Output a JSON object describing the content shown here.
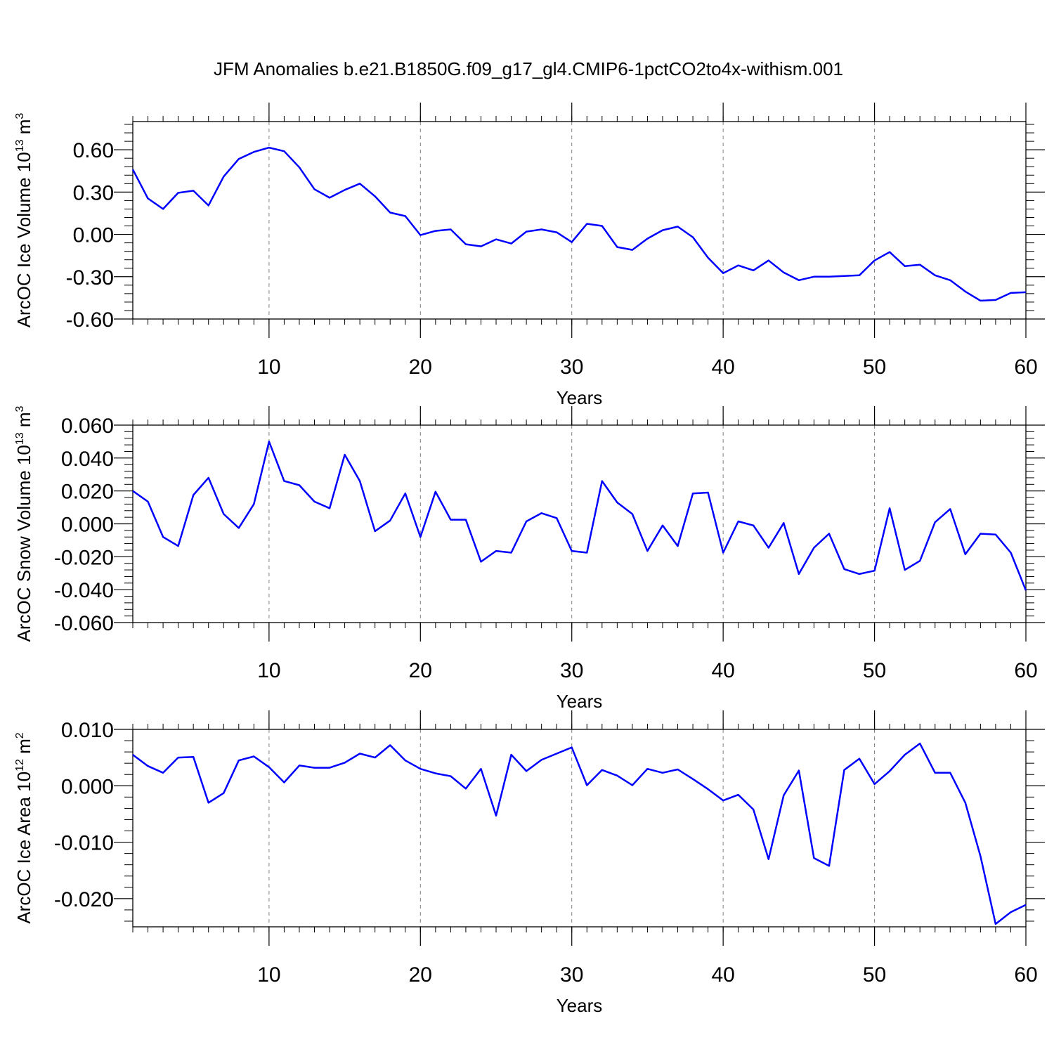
{
  "title": "JFM Anomalies b.e21.B1850G.f09_g17_gl4.CMIP6-1pctCO2to4x-withism.001",
  "colors": {
    "line": "#0000ff",
    "axis": "#000000",
    "grid": "#7f7f7f"
  },
  "chart_data": [
    {
      "type": "line",
      "xlabel": "Years",
      "ylabel": "ArcOC Ice Volume 10",
      "ylabel_exp": "13",
      "ylabel_unit": " m",
      "ylabel_unit_exp": "3",
      "xlim": [
        1,
        60
      ],
      "ylim": [
        -0.6,
        0.8
      ],
      "xticks": [
        10,
        20,
        30,
        40,
        50,
        60
      ],
      "yticks": [
        -0.6,
        -0.3,
        0.0,
        0.3,
        0.6
      ],
      "ytick_labels": [
        "-0.60",
        "-0.30",
        "0.00",
        "0.30",
        "0.60"
      ],
      "grid": "vertical dashed at major x ticks",
      "x": [
        1,
        2,
        3,
        4,
        5,
        6,
        7,
        8,
        9,
        10,
        11,
        12,
        13,
        14,
        15,
        16,
        17,
        18,
        19,
        20,
        21,
        22,
        23,
        24,
        25,
        26,
        27,
        28,
        29,
        30,
        31,
        32,
        33,
        34,
        35,
        36,
        37,
        38,
        39,
        40,
        41,
        42,
        43,
        44,
        45,
        46,
        47,
        48,
        49,
        50,
        51,
        52,
        53,
        54,
        55,
        56,
        57,
        58,
        59,
        60
      ],
      "values": [
        0.46,
        0.255,
        0.18,
        0.295,
        0.31,
        0.205,
        0.41,
        0.535,
        0.585,
        0.615,
        0.59,
        0.475,
        0.32,
        0.26,
        0.315,
        0.36,
        0.27,
        0.155,
        0.13,
        -0.005,
        0.025,
        0.035,
        -0.07,
        -0.085,
        -0.035,
        -0.065,
        0.02,
        0.035,
        0.015,
        -0.055,
        0.075,
        0.06,
        -0.09,
        -0.11,
        -0.03,
        0.03,
        0.055,
        -0.02,
        -0.165,
        -0.275,
        -0.22,
        -0.255,
        -0.185,
        -0.27,
        -0.325,
        -0.3,
        -0.3,
        -0.295,
        -0.29,
        -0.185,
        -0.125,
        -0.225,
        -0.215,
        -0.29,
        -0.325,
        -0.405,
        -0.47,
        -0.465,
        -0.415,
        -0.41
      ]
    },
    {
      "type": "line",
      "xlabel": "Years",
      "ylabel": "ArcOC Snow Volume 10",
      "ylabel_exp": "13",
      "ylabel_unit": " m",
      "ylabel_unit_exp": "3",
      "xlim": [
        1,
        60
      ],
      "ylim": [
        -0.06,
        0.06
      ],
      "xticks": [
        10,
        20,
        30,
        40,
        50,
        60
      ],
      "yticks": [
        -0.06,
        -0.04,
        -0.02,
        0.0,
        0.02,
        0.04,
        0.06
      ],
      "ytick_labels": [
        "-0.060",
        "-0.040",
        "-0.020",
        "0.000",
        "0.020",
        "0.040",
        "0.060"
      ],
      "grid": "vertical dashed at major x ticks",
      "x": [
        1,
        2,
        3,
        4,
        5,
        6,
        7,
        8,
        9,
        10,
        11,
        12,
        13,
        14,
        15,
        16,
        17,
        18,
        19,
        20,
        21,
        22,
        23,
        24,
        25,
        26,
        27,
        28,
        29,
        30,
        31,
        32,
        33,
        34,
        35,
        36,
        37,
        38,
        39,
        40,
        41,
        42,
        43,
        44,
        45,
        46,
        47,
        48,
        49,
        50,
        51,
        52,
        53,
        54,
        55,
        56,
        57,
        58,
        59,
        60
      ],
      "values": [
        0.02,
        0.0135,
        -0.008,
        -0.0135,
        0.0175,
        0.028,
        0.006,
        -0.0025,
        0.012,
        0.05,
        0.026,
        0.0235,
        0.0135,
        0.0095,
        0.042,
        0.026,
        -0.0045,
        0.002,
        0.0185,
        -0.008,
        0.0195,
        0.0025,
        0.0025,
        -0.023,
        -0.0165,
        -0.0175,
        0.0015,
        0.0065,
        0.0035,
        -0.0165,
        -0.0175,
        0.026,
        0.013,
        0.006,
        -0.0165,
        -0.001,
        -0.0135,
        0.0185,
        0.019,
        -0.0175,
        0.0015,
        -0.001,
        -0.0145,
        0.0005,
        -0.0305,
        -0.0145,
        -0.006,
        -0.0275,
        -0.0305,
        -0.0285,
        0.0095,
        -0.028,
        -0.0225,
        0.001,
        0.009,
        -0.0185,
        -0.006,
        -0.0065,
        -0.0175,
        -0.0405
      ]
    },
    {
      "type": "line",
      "xlabel": "Years",
      "ylabel": "ArcOC Ice Area 10",
      "ylabel_exp": "12",
      "ylabel_unit": " m",
      "ylabel_unit_exp": "2",
      "xlim": [
        1,
        60
      ],
      "ylim": [
        -0.025,
        0.01
      ],
      "xticks": [
        10,
        20,
        30,
        40,
        50,
        60
      ],
      "yticks": [
        -0.02,
        -0.01,
        0.0,
        0.01
      ],
      "ytick_labels": [
        "-0.020",
        "-0.010",
        "0.000",
        "0.010"
      ],
      "grid": "vertical dashed at major x ticks",
      "x": [
        1,
        2,
        3,
        4,
        5,
        6,
        7,
        8,
        9,
        10,
        11,
        12,
        13,
        14,
        15,
        16,
        17,
        18,
        19,
        20,
        21,
        22,
        23,
        24,
        25,
        26,
        27,
        28,
        29,
        30,
        31,
        32,
        33,
        34,
        35,
        36,
        37,
        38,
        39,
        40,
        41,
        42,
        43,
        44,
        45,
        46,
        47,
        48,
        49,
        50,
        51,
        52,
        53,
        54,
        55,
        56,
        57,
        58,
        59,
        60
      ],
      "values": [
        0.0055,
        0.0035,
        0.0023,
        0.005,
        0.0051,
        -0.003,
        -0.0013,
        0.0045,
        0.0052,
        0.0033,
        0.0006,
        0.0036,
        0.0032,
        0.0032,
        0.0041,
        0.0057,
        0.005,
        0.0072,
        0.0045,
        0.003,
        0.0022,
        0.0017,
        -0.0005,
        0.003,
        -0.0053,
        0.0055,
        0.0026,
        0.0046,
        0.0057,
        0.0068,
        0.0001,
        0.0028,
        0.0018,
        0.0001,
        0.003,
        0.0023,
        0.0029,
        0.0012,
        -0.0006,
        -0.0026,
        -0.0016,
        -0.0042,
        -0.013,
        -0.0017,
        0.0027,
        -0.0128,
        -0.0142,
        0.0028,
        0.0048,
        0.0003,
        0.0026,
        0.0055,
        0.0075,
        0.0023,
        0.0023,
        -0.003,
        -0.0125,
        -0.0245,
        -0.0224,
        -0.0211
      ]
    }
  ]
}
